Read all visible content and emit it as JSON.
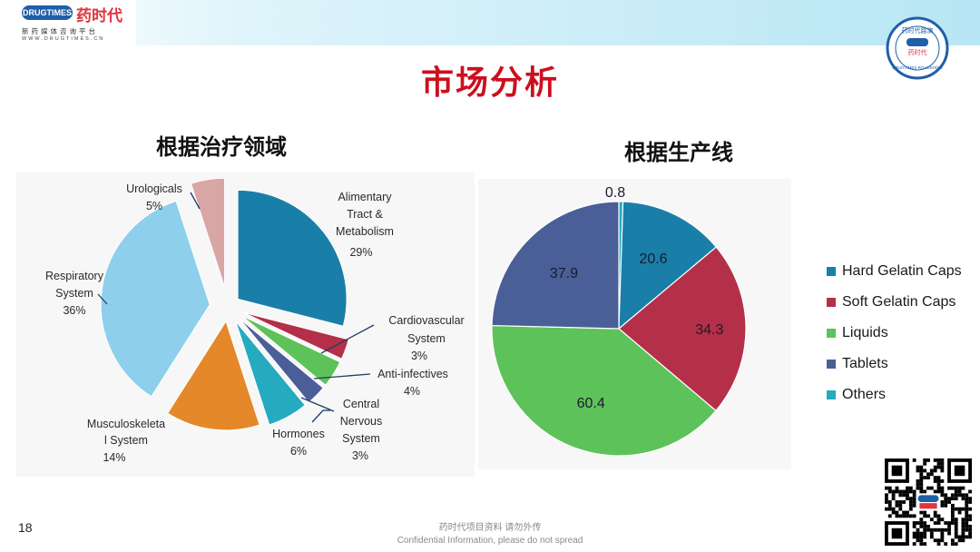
{
  "header": {
    "logo_badge": "DRUGTIMES",
    "logo_name": "药时代",
    "logo_tagline": "新药媒体咨询平台",
    "logo_url": "WWW.DRUGTIMES.CN",
    "seal_text": "药时代路演",
    "seal_badge": "药时代",
    "seal_outer": "DRUGTIMES ROADSHOW"
  },
  "title": "市场分析",
  "colors": {
    "title": "#cc0f1e",
    "teal_dark": "#1a7fa8",
    "red": "#b33048",
    "green": "#5ec25a",
    "slate": "#4a5f98",
    "cyan": "#25aac0",
    "orange": "#e4882a",
    "light_blue": "#8ecfec",
    "pink": "#d9a6a6"
  },
  "chart_data": [
    {
      "type": "pie",
      "title": "根据治疗领域",
      "slices": [
        {
          "label": "Alimentary Tract & Metabolism",
          "value": 29,
          "value_label": "29%",
          "color": "#1a7fa8"
        },
        {
          "label": "Cardiovascular System",
          "value": 3,
          "value_label": "3%",
          "color": "#b33048"
        },
        {
          "label": "Anti-infectives",
          "value": 4,
          "value_label": "4%",
          "color": "#5ec25a"
        },
        {
          "label": "Central Nervous System",
          "value": 3,
          "value_label": "3%",
          "color": "#4a5f98"
        },
        {
          "label": "Hormones",
          "value": 6,
          "value_label": "6%",
          "color": "#25aac0"
        },
        {
          "label": "Musculoskeletal System",
          "value": 14,
          "value_label": "14%",
          "color": "#e4882a"
        },
        {
          "label": "Respiratory System",
          "value": 36,
          "value_label": "36%",
          "color": "#8ecfec"
        },
        {
          "label": "Urologicals",
          "value": 5,
          "value_label": "5%",
          "color": "#d9a6a6"
        }
      ]
    },
    {
      "type": "pie",
      "title": "根据生产线",
      "legend_position": "right",
      "slices": [
        {
          "label": "Others",
          "value": 0.8,
          "value_label": "0.8",
          "color": "#25aac0"
        },
        {
          "label": "Hard Gelatin Caps",
          "value": 20.6,
          "value_label": "20.6",
          "color": "#1a7fa8"
        },
        {
          "label": "Soft Gelatin Caps",
          "value": 34.3,
          "value_label": "34.3",
          "color": "#b33048"
        },
        {
          "label": "Liquids",
          "value": 60.4,
          "value_label": "60.4",
          "color": "#5ec25a"
        },
        {
          "label": "Tablets",
          "value": 37.9,
          "value_label": "37.9",
          "color": "#4a5f98"
        }
      ],
      "legend": [
        {
          "label": "Hard Gelatin Caps",
          "color": "#1a7fa8"
        },
        {
          "label": "Soft Gelatin Caps",
          "color": "#b33048"
        },
        {
          "label": "Liquids",
          "color": "#5ec25a"
        },
        {
          "label": "Tablets",
          "color": "#4a5f98"
        },
        {
          "label": "Others",
          "color": "#25aac0"
        }
      ]
    }
  ],
  "footer": {
    "page_number": "18",
    "confidential_cn": "药时代项目资料  请勿外传",
    "confidential_en": "Confidential  Information,  please do not spread"
  }
}
